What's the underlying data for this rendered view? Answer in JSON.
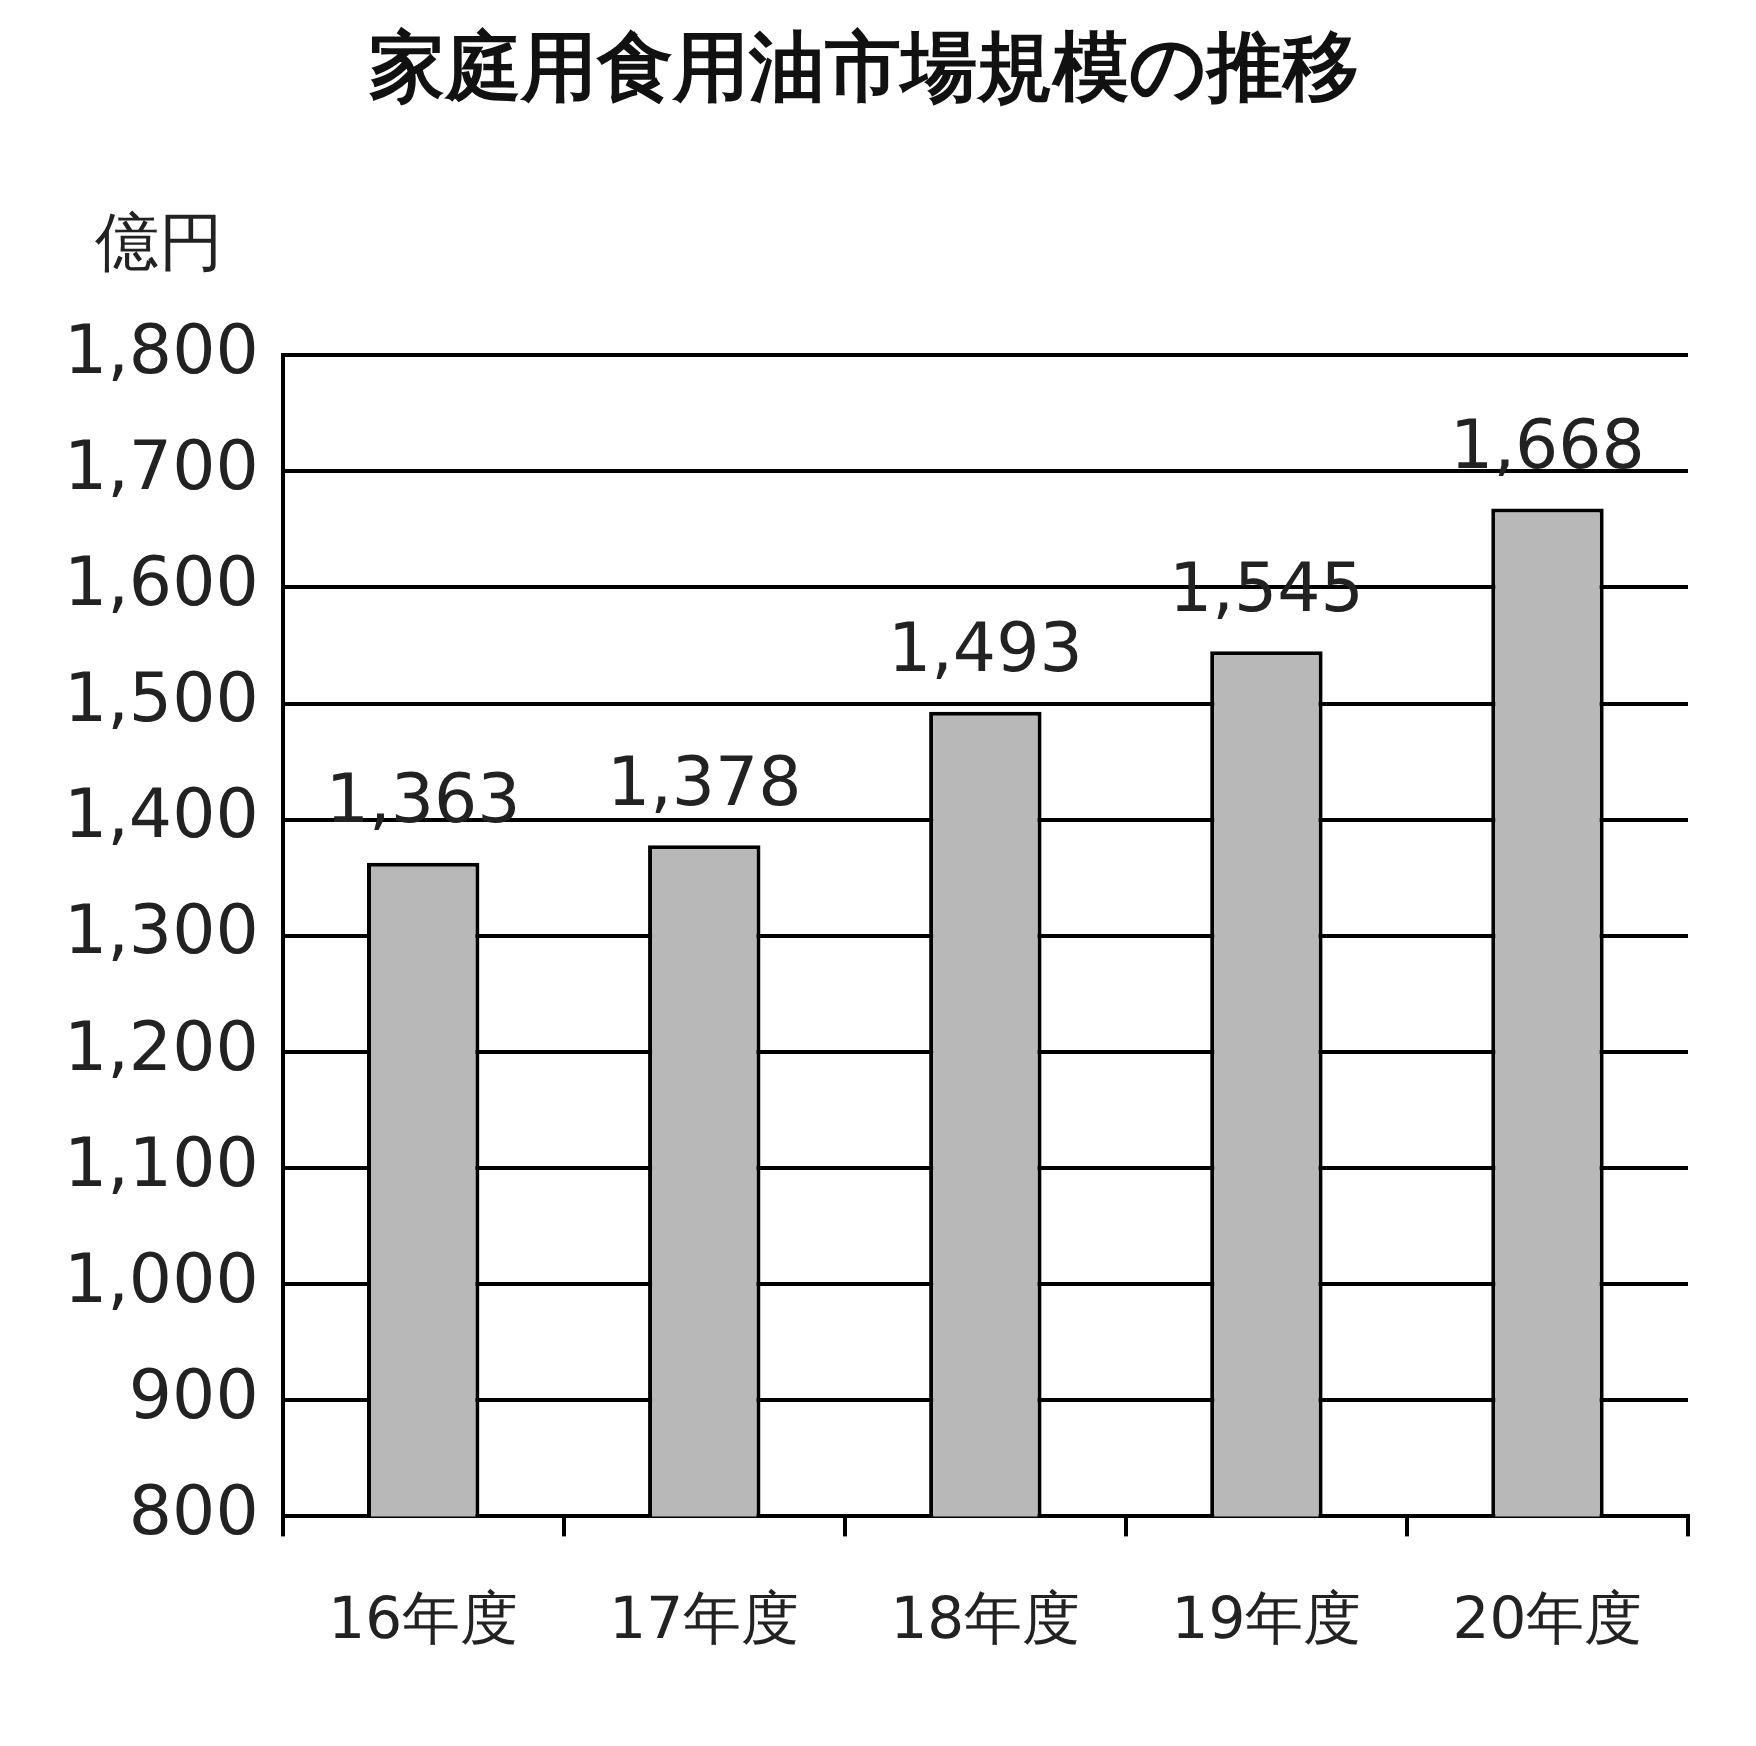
{
  "chart_data": {
    "type": "bar",
    "title": "家庭用食用油市場規模の推移",
    "ylabel": "億円",
    "categories": [
      "16年度",
      "17年度",
      "18年度",
      "19年度",
      "20年度"
    ],
    "values": [
      1363,
      1378,
      1493,
      1545,
      1668
    ],
    "value_labels": [
      "1,363",
      "1,378",
      "1,493",
      "1,545",
      "1,668"
    ],
    "color": "#b8b8b8",
    "ylim": [
      800,
      1800
    ],
    "yticks": [
      {
        "value": 800,
        "label": "800"
      },
      {
        "value": 900,
        "label": "900"
      },
      {
        "value": 1000,
        "label": "1,000"
      },
      {
        "value": 1100,
        "label": "1,100"
      },
      {
        "value": 1200,
        "label": "1,200"
      },
      {
        "value": 1300,
        "label": "1,300"
      },
      {
        "value": 1400,
        "label": "1,400"
      },
      {
        "value": 1500,
        "label": "1,500"
      },
      {
        "value": 1600,
        "label": "1,600"
      },
      {
        "value": 1700,
        "label": "1,700"
      },
      {
        "value": 1800,
        "label": "1,800"
      }
    ],
    "grid": "y",
    "legend": false
  }
}
